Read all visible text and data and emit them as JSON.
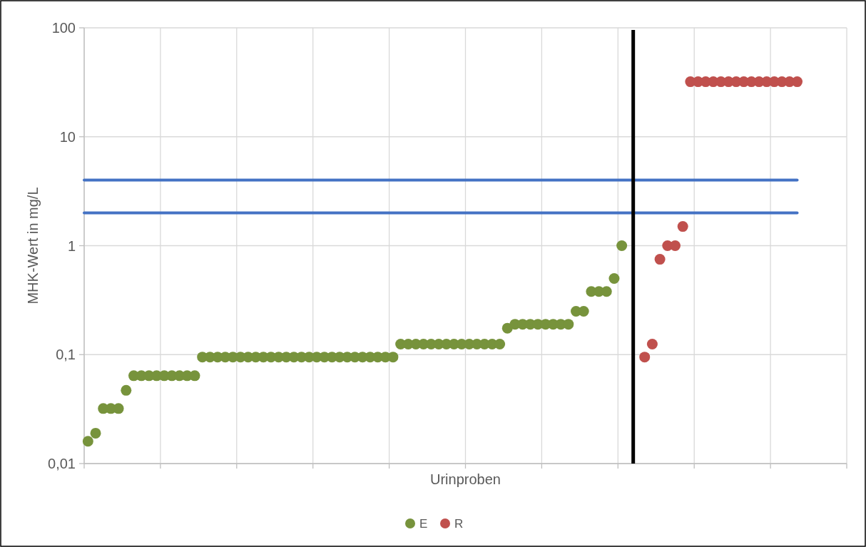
{
  "chart_data": {
    "type": "scatter",
    "xlabel": "Urinproben",
    "ylabel": "MHK-Wert in mg/L",
    "log": "y",
    "grid": true,
    "legend": "bottom",
    "marker": "circle",
    "categories": [
      null,
      null,
      null,
      null,
      null,
      null,
      null,
      null,
      null,
      null,
      null,
      null,
      null,
      null,
      null,
      null,
      null,
      null,
      null,
      null,
      null,
      null,
      null,
      null,
      null,
      null,
      null,
      null,
      null,
      null,
      null,
      null,
      null,
      null,
      null,
      null,
      null,
      null,
      null,
      null,
      null,
      null,
      null,
      null,
      null,
      null,
      null,
      null,
      null,
      null,
      null,
      null,
      null,
      null,
      null,
      null,
      null,
      null,
      null,
      null,
      null,
      null,
      null,
      null,
      null,
      null,
      null,
      null,
      null,
      null,
      null,
      null,
      null,
      null,
      null,
      null,
      null,
      null,
      null,
      null,
      null,
      null,
      null,
      null,
      null,
      null,
      null,
      null,
      null,
      null,
      null,
      null,
      null,
      null,
      null,
      null,
      null,
      null,
      null,
      null
    ],
    "ylim": [
      0.01,
      100
    ],
    "yticks": [
      {
        "value": 0.01,
        "label": "0,01"
      },
      {
        "value": 0.1,
        "label": "0,1"
      },
      1,
      10,
      100
    ],
    "ref_lines": [
      {
        "axis": "y",
        "value": 4,
        "color": "#4472c4"
      },
      {
        "axis": "y",
        "value": 2,
        "color": "#4472c4"
      }
    ],
    "series": [
      {
        "name": "E",
        "color": "#77933c",
        "values": [
          0.016,
          0.019,
          0.032,
          0.032,
          0.032,
          0.047,
          0.064,
          0.064,
          0.064,
          0.064,
          0.064,
          0.064,
          0.064,
          0.064,
          0.064,
          0.095,
          0.095,
          0.095,
          0.095,
          0.095,
          0.095,
          0.095,
          0.095,
          0.095,
          0.095,
          0.095,
          0.095,
          0.095,
          0.095,
          0.095,
          0.095,
          0.095,
          0.095,
          0.095,
          0.095,
          0.095,
          0.095,
          0.095,
          0.095,
          0.095,
          0.095,
          0.125,
          0.125,
          0.125,
          0.125,
          0.125,
          0.125,
          0.125,
          0.125,
          0.125,
          0.125,
          0.125,
          0.125,
          0.125,
          0.125,
          0.175,
          0.19,
          0.19,
          0.19,
          0.19,
          0.19,
          0.19,
          0.19,
          0.19,
          0.25,
          0.25,
          0.38,
          0.38,
          0.38,
          0.5,
          1,
          null,
          null,
          null,
          null,
          null,
          null,
          null,
          null,
          null,
          null,
          null,
          null,
          null,
          null,
          null,
          null,
          null,
          null,
          null,
          null,
          null,
          null,
          null,
          null,
          null,
          null,
          null,
          null,
          null
        ]
      },
      {
        "name": "R",
        "color": "#c0504d",
        "values": [
          null,
          null,
          null,
          null,
          null,
          null,
          null,
          null,
          null,
          null,
          null,
          null,
          null,
          null,
          null,
          null,
          null,
          null,
          null,
          null,
          null,
          null,
          null,
          null,
          null,
          null,
          null,
          null,
          null,
          null,
          null,
          null,
          null,
          null,
          null,
          null,
          null,
          null,
          null,
          null,
          null,
          null,
          null,
          null,
          null,
          null,
          null,
          null,
          null,
          null,
          null,
          null,
          null,
          null,
          null,
          null,
          null,
          null,
          null,
          null,
          null,
          null,
          null,
          null,
          null,
          null,
          null,
          null,
          null,
          null,
          null,
          null,
          null,
          0.095,
          0.125,
          0.75,
          1,
          1,
          1.5,
          32,
          32,
          32,
          32,
          32,
          32,
          32,
          32,
          32,
          32,
          32,
          32,
          32,
          32,
          32,
          null,
          null,
          null,
          null,
          null,
          null
        ]
      }
    ]
  }
}
